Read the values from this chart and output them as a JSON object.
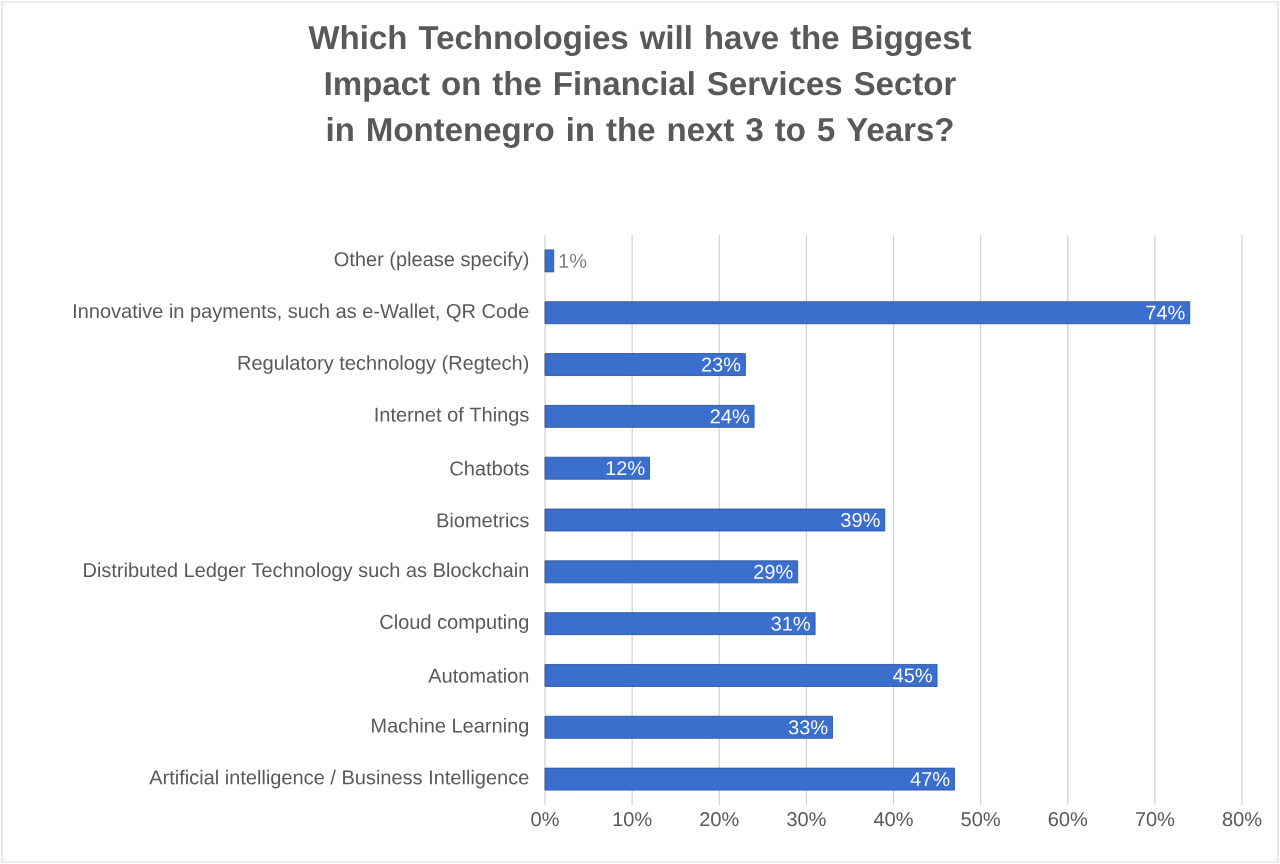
{
  "chart_data": {
    "type": "bar",
    "orientation": "horizontal",
    "title": "Which Technologies will have the Biggest Impact on the Financial Services Sector in Montenegro in the next 3 to 5 Years?",
    "categories": [
      "Other (please specify)",
      "Innovative in payments, such as e-Wallet, QR Code",
      "Regulatory technology (Regtech)",
      "Internet of Things",
      "Chatbots",
      "Biometrics",
      "Distributed Ledger Technology such as Blockchain",
      "Cloud computing",
      "Automation",
      "Machine Learning",
      "Artificial intelligence / Business Intelligence"
    ],
    "values": [
      1,
      74,
      23,
      24,
      12,
      39,
      29,
      31,
      45,
      33,
      47
    ],
    "value_labels": [
      "1%",
      "74%",
      "23%",
      "24%",
      "12%",
      "39%",
      "29%",
      "31%",
      "45%",
      "33%",
      "47%"
    ],
    "color": "#3b6fce",
    "xlim": [
      0,
      80
    ],
    "xticks": [
      {
        "value": 0,
        "label": "0%"
      },
      {
        "value": 10,
        "label": "10%"
      },
      {
        "value": 20,
        "label": "20%"
      },
      {
        "value": 30,
        "label": "30%"
      },
      {
        "value": 40,
        "label": "40%"
      },
      {
        "value": 50,
        "label": "50%"
      },
      {
        "value": 60,
        "label": "60%"
      },
      {
        "value": 70,
        "label": "70%"
      },
      {
        "value": 80,
        "label": "80%"
      }
    ],
    "grid": "x"
  }
}
